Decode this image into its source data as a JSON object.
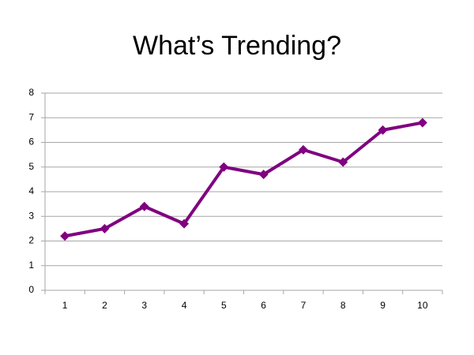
{
  "chart_data": {
    "type": "line",
    "title": "What’s Trending?",
    "categories": [
      "1",
      "2",
      "3",
      "4",
      "5",
      "6",
      "7",
      "8",
      "9",
      "10"
    ],
    "values": [
      2.2,
      2.5,
      3.4,
      2.7,
      5.0,
      4.7,
      5.7,
      5.2,
      6.5,
      6.8
    ],
    "color": "#800080",
    "ylim": [
      0,
      8
    ],
    "yticks": [
      0,
      1,
      2,
      3,
      4,
      5,
      6,
      7,
      8
    ],
    "grid": true
  }
}
